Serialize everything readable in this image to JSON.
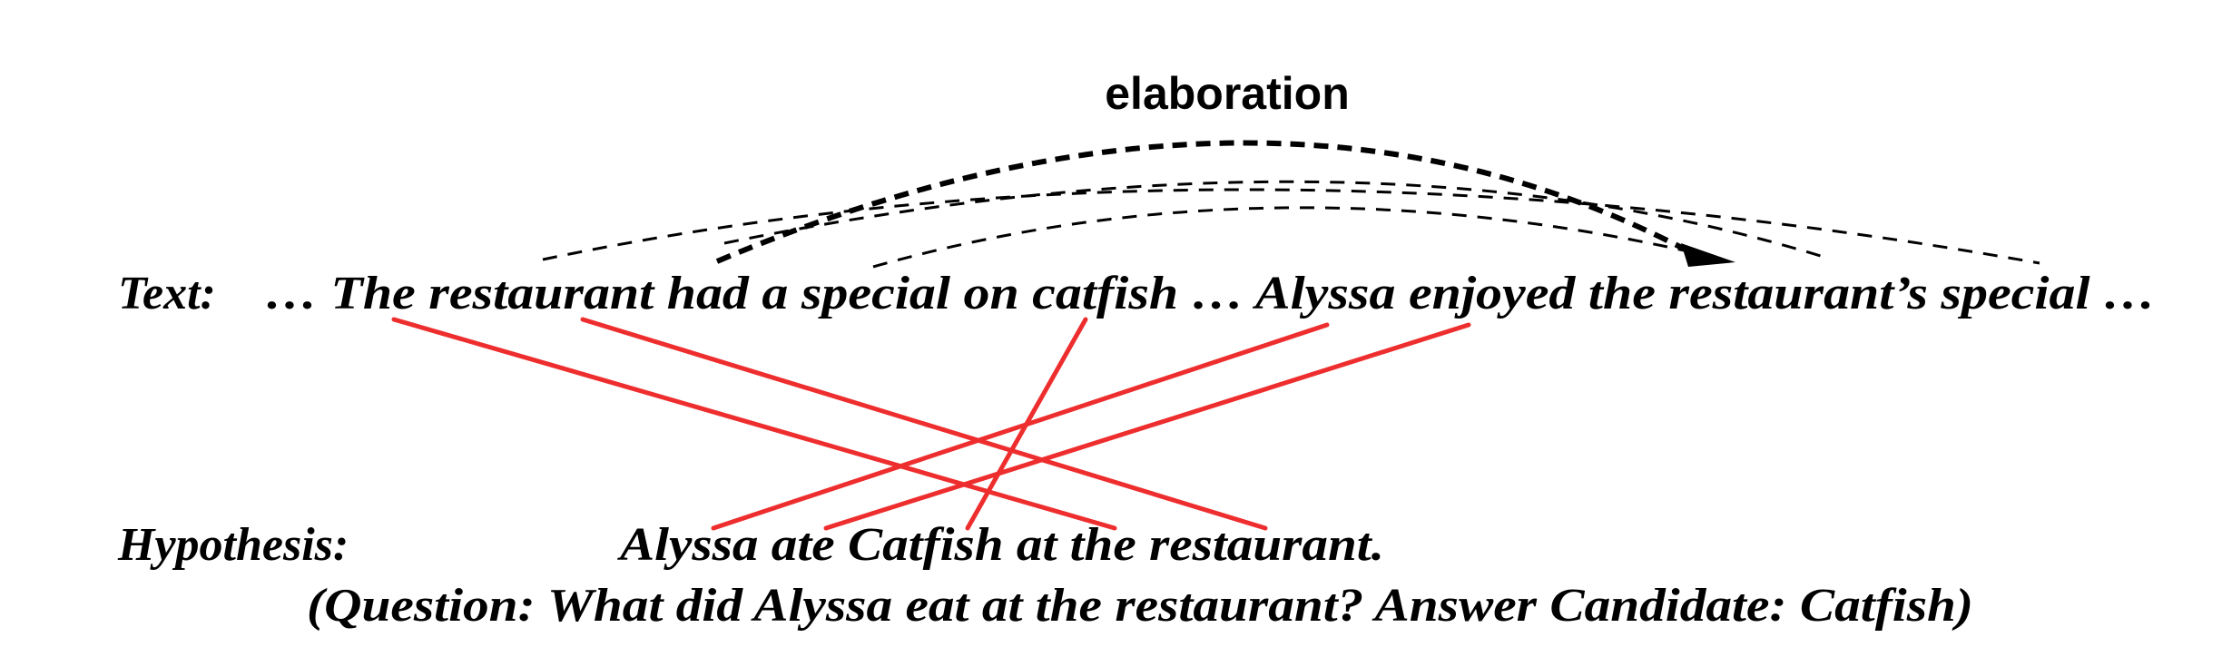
{
  "relation_label": "elaboration",
  "text_row": {
    "label": "Text:",
    "sentence": "… The restaurant had a special on catfish …  Alyssa enjoyed the restaurant’s special …"
  },
  "hypothesis_row": {
    "label": "Hypothesis:",
    "sentence": "Alyssa ate Catfish at the restaurant."
  },
  "question_line": "(Question: What did Alyssa eat at the restaurant? Answer Candidate: Catfish)",
  "colors": {
    "alignment": "#ee2e2e",
    "arcs": "#000000",
    "text": "#000000"
  }
}
